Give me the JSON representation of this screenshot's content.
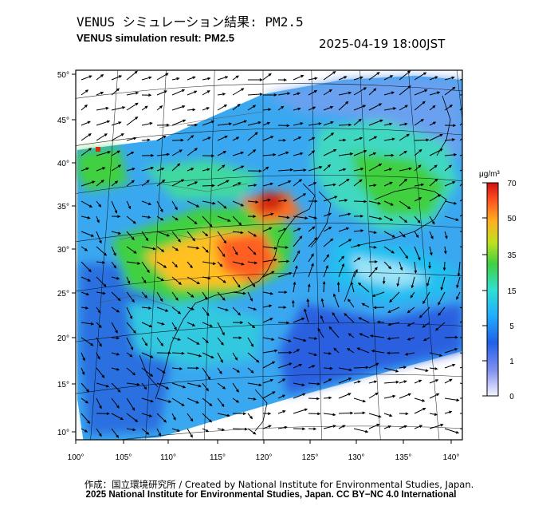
{
  "header": {
    "title_jp": "VENUS シミュレーション結果: PM2.5",
    "title_en": "VENUS simulation result: PM2.5",
    "timestamp": "2025-04-19 18:00JST"
  },
  "map": {
    "lon_ticks": [
      "100°",
      "105°",
      "110°",
      "115°",
      "120°",
      "125°",
      "130°",
      "135°",
      "140°"
    ],
    "lat_ticks": [
      "50°",
      "45°",
      "40°",
      "35°",
      "30°",
      "25°",
      "20°",
      "15°",
      "10°"
    ],
    "lon_range": [
      100,
      141
    ],
    "lat_range": [
      9,
      51
    ]
  },
  "legend": {
    "unit": "μg/m³",
    "ticks": [
      "70",
      "50",
      "35",
      "15",
      "5",
      "1",
      "0"
    ],
    "colors": [
      "#f0f0ff",
      "#3050e0",
      "#20a8ff",
      "#30e0d0",
      "#40d040",
      "#ffc020",
      "#ff6020",
      "#d01010"
    ]
  },
  "footer": {
    "credit_line1": "作成：国立環境研究所 / Created by National Institute for Environmental Studies, Japan.",
    "credit_line2": "2025 National Institute for Environmental Studies, Japan. CC BY−NC 4.0 International"
  }
}
